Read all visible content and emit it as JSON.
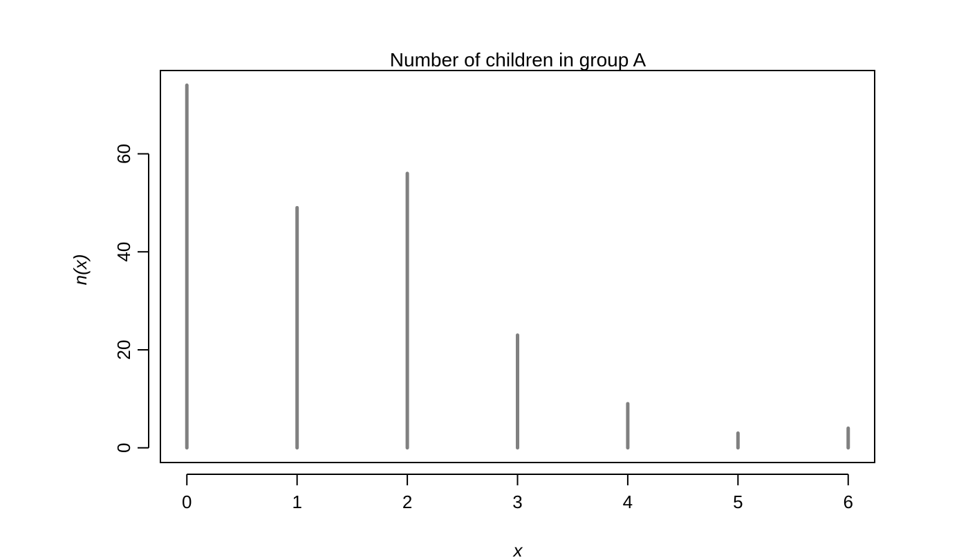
{
  "chart_data": {
    "type": "bar",
    "title": "Number of children in group A",
    "xlabel": "x",
    "ylabel": "n(x)",
    "categories": [
      "0",
      "1",
      "2",
      "3",
      "4",
      "5",
      "6"
    ],
    "x": [
      0,
      1,
      2,
      3,
      4,
      5,
      6
    ],
    "values": [
      74,
      49,
      56,
      23,
      9,
      3,
      4
    ],
    "xlim": [
      -0.24,
      6.24
    ],
    "ylim": [
      -3.0,
      77.0
    ],
    "yticks": [
      0,
      20,
      40,
      60
    ],
    "yticklabels": [
      "0",
      "20",
      "40",
      "60"
    ],
    "xticks": [
      0,
      1,
      2,
      3,
      4,
      5,
      6
    ],
    "xticklabels": [
      "0",
      "1",
      "2",
      "3",
      "4",
      "5",
      "6"
    ],
    "grid": false,
    "colors": {
      "bars": "#808080",
      "axes": "#000000",
      "background": "#ffffff"
    }
  }
}
